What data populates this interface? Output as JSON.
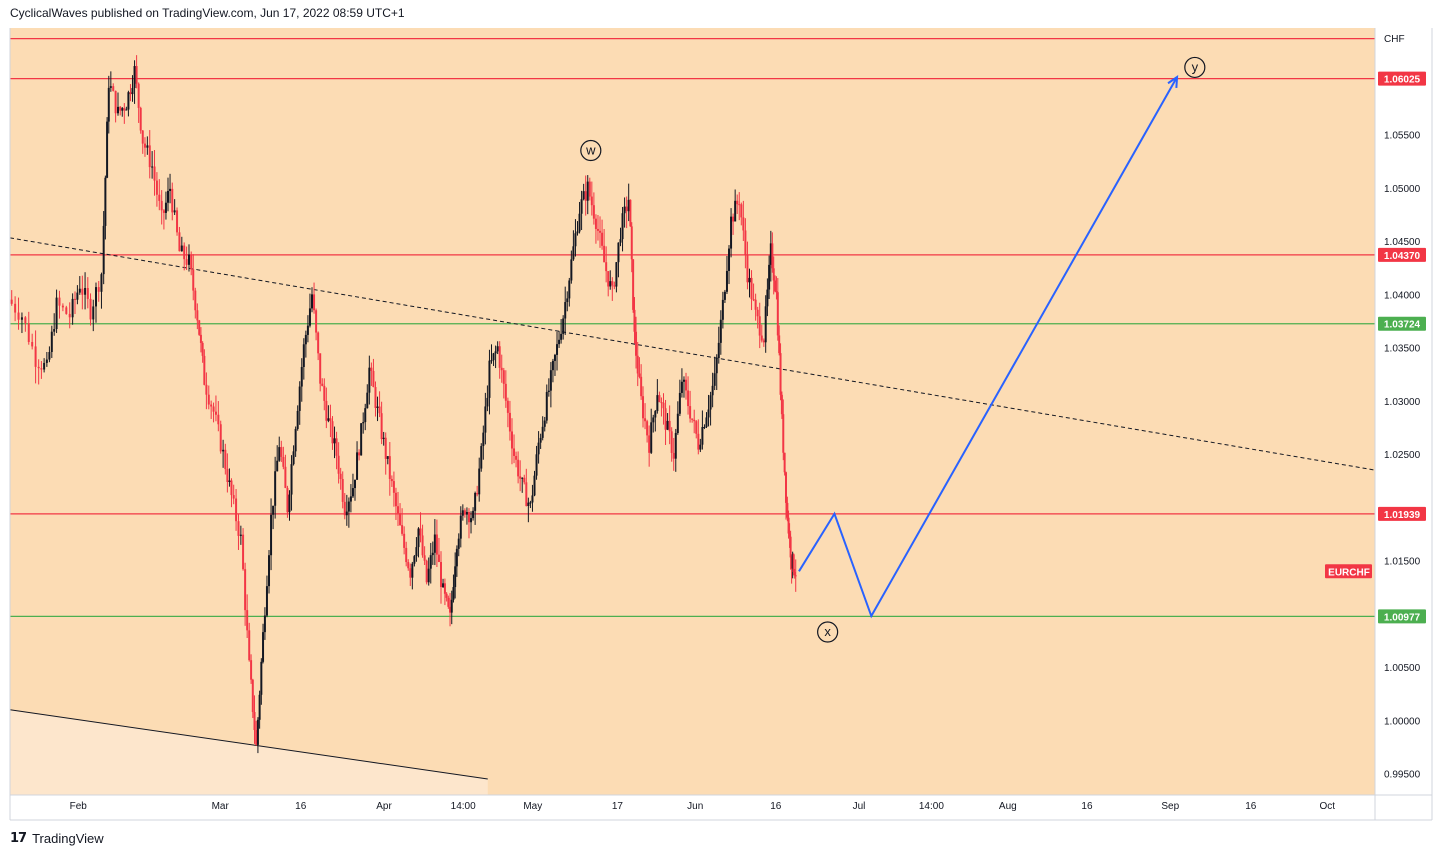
{
  "header": {
    "text": "CyclicalWaves published on TradingView.com, Jun 17, 2022 08:59 UTC+1"
  },
  "footer": {
    "brand": "TradingView",
    "logo": "tradingview-logo-icon"
  },
  "colors": {
    "background": "#fcdcb4",
    "resistance": "#f23645",
    "support": "#4caf50",
    "projection": "#2962ff",
    "candle_up": "#131722",
    "candle_down": "#f23645"
  },
  "chart_data": {
    "type": "candlestick",
    "symbol": "EURCHF",
    "currency_label": "CHF",
    "y_range": [
      0.993,
      1.065
    ],
    "y_ticks": [
      "1.05500",
      "1.05000",
      "1.04500",
      "1.04000",
      "1.03500",
      "1.03000",
      "1.02500",
      "1.01500",
      "1.00500",
      "1.00000",
      "0.99500"
    ],
    "x_ticks": [
      {
        "label": "Feb",
        "t": 0.05
      },
      {
        "label": "Mar",
        "t": 0.154
      },
      {
        "label": "16",
        "t": 0.213
      },
      {
        "label": "Apr",
        "t": 0.274
      },
      {
        "label": "14:00",
        "t": 0.332
      },
      {
        "label": "May",
        "t": 0.383
      },
      {
        "label": "17",
        "t": 0.445
      },
      {
        "label": "Jun",
        "t": 0.502
      },
      {
        "label": "16",
        "t": 0.561
      },
      {
        "label": "Jul",
        "t": 0.622
      },
      {
        "label": "14:00",
        "t": 0.675
      },
      {
        "label": "Aug",
        "t": 0.731
      },
      {
        "label": "16",
        "t": 0.789
      },
      {
        "label": "Sep",
        "t": 0.85
      },
      {
        "label": "16",
        "t": 0.909
      },
      {
        "label": "Oct",
        "t": 0.965
      }
    ],
    "horizontal_levels": [
      {
        "value": 1.064,
        "color": "resistance",
        "label": ""
      },
      {
        "value": 1.06025,
        "color": "resistance",
        "label": "1.06025"
      },
      {
        "value": 1.0437,
        "color": "resistance",
        "label": "1.04370"
      },
      {
        "value": 1.03724,
        "color": "support",
        "label": "1.03724"
      },
      {
        "value": 1.01939,
        "color": "resistance",
        "label": "1.01939"
      },
      {
        "value": 1.00977,
        "color": "support",
        "label": "1.00977"
      }
    ],
    "symbol_badge_value": 1.014,
    "trendlines": [
      {
        "style": "dashed",
        "from": {
          "t": 0.0,
          "v": 1.0453
        },
        "to": {
          "t": 1.0,
          "v": 1.0235
        }
      },
      {
        "style": "solid",
        "from": {
          "t": 0.0,
          "v": 1.001
        },
        "to": {
          "t": 0.35,
          "v": 0.9945
        }
      }
    ],
    "price_path": [
      [
        0.0,
        1.0395
      ],
      [
        0.01,
        1.038
      ],
      [
        0.02,
        1.034
      ],
      [
        0.028,
        1.033
      ],
      [
        0.035,
        1.039
      ],
      [
        0.045,
        1.038
      ],
      [
        0.052,
        1.041
      ],
      [
        0.06,
        1.0385
      ],
      [
        0.068,
        1.042
      ],
      [
        0.073,
        1.06
      ],
      [
        0.08,
        1.057
      ],
      [
        0.086,
        1.058
      ],
      [
        0.092,
        1.061
      ],
      [
        0.098,
        1.0545
      ],
      [
        0.105,
        1.052
      ],
      [
        0.112,
        1.047
      ],
      [
        0.118,
        1.05
      ],
      [
        0.125,
        1.044
      ],
      [
        0.132,
        1.043
      ],
      [
        0.138,
        1.038
      ],
      [
        0.143,
        1.032
      ],
      [
        0.15,
        1.029
      ],
      [
        0.157,
        1.025
      ],
      [
        0.163,
        1.021
      ],
      [
        0.17,
        1.017
      ],
      [
        0.176,
        1.005
      ],
      [
        0.181,
        0.9975
      ],
      [
        0.186,
        1.008
      ],
      [
        0.192,
        1.019
      ],
      [
        0.198,
        1.026
      ],
      [
        0.204,
        1.02
      ],
      [
        0.21,
        1.028
      ],
      [
        0.216,
        1.035
      ],
      [
        0.222,
        1.04
      ],
      [
        0.228,
        1.032
      ],
      [
        0.234,
        1.028
      ],
      [
        0.24,
        1.025
      ],
      [
        0.246,
        1.02
      ],
      [
        0.252,
        1.022
      ],
      [
        0.258,
        1.027
      ],
      [
        0.264,
        1.033
      ],
      [
        0.27,
        1.029
      ],
      [
        0.276,
        1.025
      ],
      [
        0.282,
        1.021
      ],
      [
        0.288,
        1.017
      ],
      [
        0.294,
        1.014
      ],
      [
        0.3,
        1.018
      ],
      [
        0.306,
        1.013
      ],
      [
        0.312,
        1.017
      ],
      [
        0.318,
        1.012
      ],
      [
        0.323,
        1.0095
      ],
      [
        0.328,
        1.017
      ],
      [
        0.334,
        1.02
      ],
      [
        0.34,
        1.019
      ],
      [
        0.346,
        1.025
      ],
      [
        0.352,
        1.033
      ],
      [
        0.358,
        1.035
      ],
      [
        0.364,
        1.03
      ],
      [
        0.37,
        1.025
      ],
      [
        0.376,
        1.022
      ],
      [
        0.382,
        1.02
      ],
      [
        0.388,
        1.026
      ],
      [
        0.394,
        1.03
      ],
      [
        0.4,
        1.034
      ],
      [
        0.406,
        1.038
      ],
      [
        0.412,
        1.043
      ],
      [
        0.418,
        1.048
      ],
      [
        0.424,
        1.05
      ],
      [
        0.43,
        1.047
      ],
      [
        0.436,
        1.043
      ],
      [
        0.442,
        1.04
      ],
      [
        0.448,
        1.046
      ],
      [
        0.454,
        1.049
      ],
      [
        0.458,
        1.036
      ],
      [
        0.463,
        1.03
      ],
      [
        0.469,
        1.026
      ],
      [
        0.475,
        1.031
      ],
      [
        0.481,
        1.028
      ],
      [
        0.487,
        1.025
      ],
      [
        0.493,
        1.032
      ],
      [
        0.499,
        1.029
      ],
      [
        0.505,
        1.026
      ],
      [
        0.511,
        1.029
      ],
      [
        0.517,
        1.032
      ],
      [
        0.523,
        1.039
      ],
      [
        0.529,
        1.047
      ],
      [
        0.535,
        1.049
      ],
      [
        0.541,
        1.042
      ],
      [
        0.547,
        1.038
      ],
      [
        0.553,
        1.036
      ],
      [
        0.558,
        1.044
      ],
      [
        0.562,
        1.04
      ],
      [
        0.566,
        1.028
      ],
      [
        0.57,
        1.019
      ],
      [
        0.573,
        1.015
      ],
      [
        0.576,
        1.014
      ]
    ],
    "projection_path": [
      {
        "t": 0.578,
        "v": 1.014
      },
      {
        "t": 0.604,
        "v": 1.0194
      },
      {
        "t": 0.631,
        "v": 1.0098
      },
      {
        "t": 0.855,
        "v": 1.0604
      }
    ],
    "wave_labels": [
      {
        "text": "w",
        "t": 0.4255,
        "v": 1.0535
      },
      {
        "text": "x",
        "t": 0.599,
        "v": 1.0083
      },
      {
        "text": "y",
        "t": 0.868,
        "v": 1.0613
      }
    ]
  }
}
